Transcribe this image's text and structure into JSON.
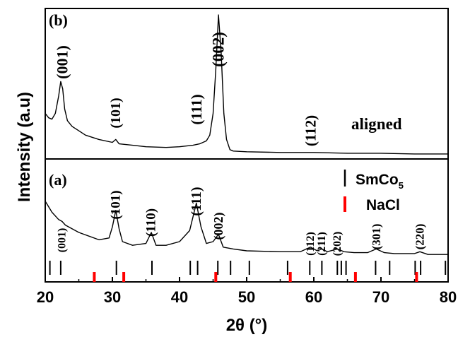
{
  "chart_data": {
    "type": "line",
    "xlabel": "2θ (°)",
    "ylabel": "Intensity (a.u)",
    "xlim": [
      20,
      80
    ],
    "xticks": [
      20,
      30,
      40,
      50,
      60,
      70,
      80
    ],
    "panels": [
      {
        "id": "b",
        "panel_label": "(b)",
        "series_label": "aligned",
        "peak_labels": [
          {
            "hkl": "(001)",
            "two_theta": 22.5
          },
          {
            "hkl": "(101)",
            "two_theta": 30.5
          },
          {
            "hkl": "(111)",
            "two_theta": 42.5
          },
          {
            "hkl": "(002)",
            "two_theta": 45.8
          },
          {
            "hkl": "(112)",
            "two_theta": 59.5
          }
        ],
        "pattern": {
          "x": [
            20,
            20.5,
            21,
            21.5,
            22,
            22.3,
            22.6,
            22.9,
            23.3,
            24,
            25,
            26,
            28,
            30,
            30.5,
            31,
            33,
            35,
            38,
            40,
            42,
            43,
            44,
            44.5,
            45,
            45.4,
            45.8,
            46.2,
            46.6,
            47,
            47.5,
            48,
            50,
            55,
            60,
            65,
            70,
            75,
            80
          ],
          "y": [
            0.3,
            0.27,
            0.26,
            0.3,
            0.42,
            0.52,
            0.47,
            0.33,
            0.25,
            0.21,
            0.18,
            0.15,
            0.12,
            0.1,
            0.12,
            0.09,
            0.08,
            0.07,
            0.065,
            0.07,
            0.08,
            0.09,
            0.11,
            0.15,
            0.3,
            0.6,
            0.98,
            0.72,
            0.3,
            0.12,
            0.05,
            0.04,
            0.035,
            0.03,
            0.03,
            0.025,
            0.025,
            0.02,
            0.02
          ]
        }
      },
      {
        "id": "a",
        "panel_label": "(a)",
        "peak_labels": [
          {
            "hkl": "(001)",
            "two_theta": 22.5
          },
          {
            "hkl": "(101)",
            "two_theta": 30.5
          },
          {
            "hkl": "(110)",
            "two_theta": 35.8
          },
          {
            "hkl": "(111)",
            "two_theta": 42.5
          },
          {
            "hkl": "(002)",
            "two_theta": 45.8
          },
          {
            "hkl": "(112)",
            "two_theta": 59.5
          },
          {
            "hkl": "(211)",
            "two_theta": 61.2
          },
          {
            "hkl": "(202)",
            "two_theta": 63.5
          },
          {
            "hkl": "(301)",
            "two_theta": 69.3
          },
          {
            "hkl": "(220)",
            "two_theta": 75.8
          }
        ],
        "pattern": {
          "x": [
            20,
            21,
            22,
            22.5,
            23,
            25,
            28,
            29.5,
            30,
            30.5,
            31,
            31.5,
            33,
            35,
            35.8,
            36.5,
            38,
            40,
            41.5,
            42.5,
            43.2,
            44,
            45,
            45.8,
            46.5,
            48,
            50,
            55,
            58,
            59.5,
            60.5,
            61.2,
            62,
            63.5,
            64.5,
            66,
            68,
            69.3,
            70.5,
            72,
            75,
            75.8,
            77,
            80
          ],
          "y": [
            0.32,
            0.26,
            0.22,
            0.21,
            0.19,
            0.15,
            0.11,
            0.12,
            0.18,
            0.27,
            0.17,
            0.1,
            0.08,
            0.09,
            0.15,
            0.08,
            0.08,
            0.1,
            0.16,
            0.31,
            0.18,
            0.09,
            0.1,
            0.14,
            0.07,
            0.06,
            0.05,
            0.045,
            0.045,
            0.07,
            0.05,
            0.06,
            0.045,
            0.06,
            0.045,
            0.04,
            0.04,
            0.06,
            0.04,
            0.035,
            0.035,
            0.045,
            0.03,
            0.03
          ]
        },
        "reference_legend": [
          {
            "name": "SmCo5",
            "color": "#000000"
          },
          {
            "name": "NaCl",
            "color": "#ff0000"
          }
        ],
        "reference_smco5": [
          20.7,
          22.3,
          30.6,
          35.9,
          41.6,
          42.7,
          45.7,
          47.6,
          50.4,
          56.1,
          59.4,
          61.2,
          63.5,
          64.1,
          64.8,
          69.2,
          71.3,
          75.1,
          75.9,
          79.6
        ],
        "reference_nacl": [
          27.3,
          31.7,
          45.4,
          56.5,
          66.2,
          75.3
        ]
      }
    ]
  }
}
